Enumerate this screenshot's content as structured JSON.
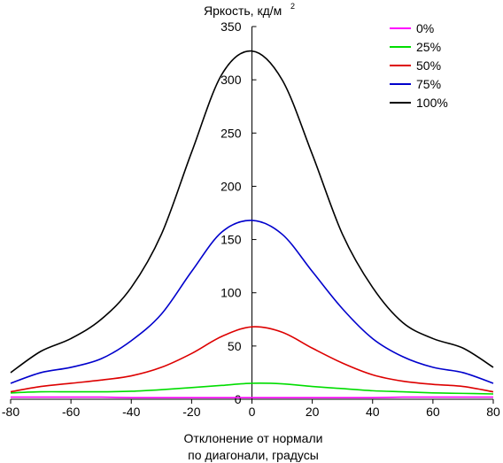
{
  "chart_data": {
    "type": "line",
    "title": "Яркость, кд/м",
    "title_superscript": "2",
    "xlabel_line1": "Отклонение от нормали",
    "xlabel_line2": "по диагонали, градусы",
    "xlim": [
      -80,
      80
    ],
    "ylim": [
      0,
      350
    ],
    "x_ticks": [
      -80,
      -60,
      -40,
      -20,
      0,
      20,
      40,
      60,
      80
    ],
    "y_ticks": [
      0,
      50,
      100,
      150,
      200,
      250,
      300,
      350
    ],
    "grid": false,
    "legend_position": "top-right",
    "x": [
      -80,
      -70,
      -60,
      -50,
      -40,
      -30,
      -20,
      -10,
      0,
      10,
      20,
      30,
      40,
      50,
      60,
      70,
      80
    ],
    "series": [
      {
        "name": "0%",
        "color": "#ff00ff",
        "values": [
          2,
          2,
          2,
          2,
          1.5,
          1.5,
          1.5,
          1.5,
          1.5,
          1.5,
          1.5,
          1.5,
          1.5,
          2,
          2,
          2,
          2
        ]
      },
      {
        "name": "25%",
        "color": "#00dd00",
        "values": [
          6,
          7,
          7,
          7,
          7.5,
          9,
          11,
          13,
          15,
          14.5,
          12,
          10,
          8,
          7,
          6,
          5.5,
          5
        ]
      },
      {
        "name": "50%",
        "color": "#dd0000",
        "values": [
          7,
          12,
          15,
          18,
          22,
          30,
          43,
          59,
          68,
          63,
          48,
          34,
          23,
          17,
          14,
          12,
          7
        ]
      },
      {
        "name": "75%",
        "color": "#0000cc",
        "values": [
          15,
          25,
          30,
          38,
          55,
          80,
          120,
          157,
          168,
          155,
          120,
          85,
          57,
          40,
          30,
          25,
          15
        ]
      },
      {
        "name": "100%",
        "color": "#000000",
        "values": [
          25,
          45,
          57,
          75,
          105,
          155,
          232,
          305,
          327,
          300,
          230,
          155,
          105,
          72,
          57,
          48,
          30
        ]
      }
    ]
  }
}
